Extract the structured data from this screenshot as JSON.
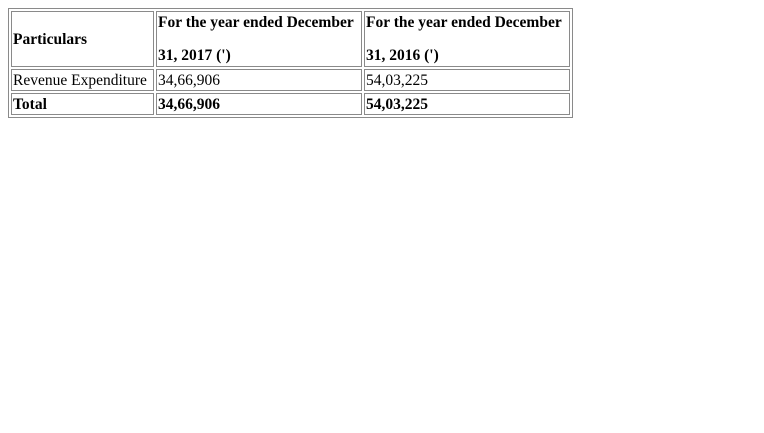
{
  "table": {
    "headers": {
      "particulars": "Particulars",
      "col2_line1": "For the year ended December",
      "col2_line2": "31, 2017 (')",
      "col3_line1": "For the year ended December",
      "col3_line2": "31, 2016 (')"
    },
    "rows": [
      {
        "particulars": "Revenue Expenditure",
        "y2017": "34,66,906",
        "y2016": "54,03,225"
      }
    ],
    "total": {
      "particulars": "Total",
      "y2017": "34,66,906",
      "y2016": "54,03,225"
    }
  }
}
